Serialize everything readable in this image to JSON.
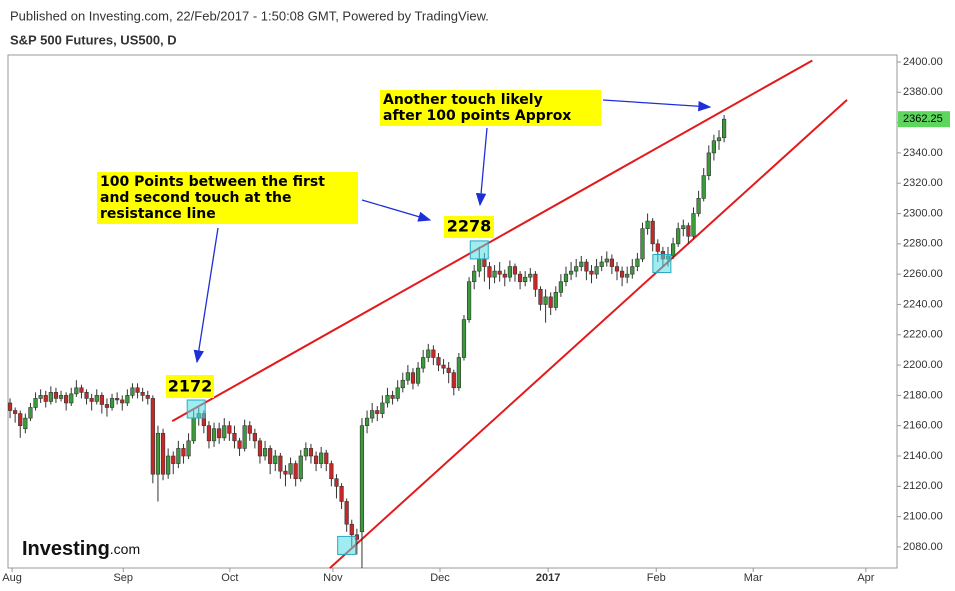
{
  "header": {
    "published": "Published on Investing.com, 22/Feb/2017 - 1:50:08 GMT, Powered by TradingView.",
    "symbol": "S&P 500 Futures, US500, D"
  },
  "logo": {
    "name": "Investing",
    "suffix": ".com"
  },
  "chart_data": {
    "type": "candlestick",
    "up_color": "#3c9a3c",
    "down_color": "#c62828",
    "xlim": [
      -0.4,
      173.9
    ],
    "ylim": [
      2066.1,
      2404.6
    ],
    "xticks": [
      {
        "value": 0.4,
        "label": "Aug"
      },
      {
        "value": 22.2,
        "label": "Sep"
      },
      {
        "value": 43.1,
        "label": "Oct"
      },
      {
        "value": 63.3,
        "label": "Nov"
      },
      {
        "value": 84.3,
        "label": "Dec"
      },
      {
        "value": 105.5,
        "label": "2017"
      },
      {
        "value": 126.7,
        "label": "Feb"
      },
      {
        "value": 145.7,
        "label": "Mar"
      },
      {
        "value": 167.8,
        "label": "Apr"
      }
    ],
    "yticks": [
      {
        "value": 2080,
        "label": "2080.00"
      },
      {
        "value": 2100,
        "label": "2100.00"
      },
      {
        "value": 2120,
        "label": "2120.00"
      },
      {
        "value": 2140,
        "label": "2140.00"
      },
      {
        "value": 2160,
        "label": "2160.00"
      },
      {
        "value": 2180,
        "label": "2180.00"
      },
      {
        "value": 2200,
        "label": "2200.00"
      },
      {
        "value": 2220,
        "label": "2220.00"
      },
      {
        "value": 2240,
        "label": "2240.00"
      },
      {
        "value": 2260,
        "label": "2260.00"
      },
      {
        "value": 2280,
        "label": "2280.00"
      },
      {
        "value": 2300,
        "label": "2300.00"
      },
      {
        "value": 2320,
        "label": "2320.00"
      },
      {
        "value": 2340,
        "label": "2340.00"
      },
      {
        "value": 2360,
        "label": "2360.00"
      },
      {
        "value": 2380,
        "label": "2380.00"
      },
      {
        "value": 2400,
        "label": "2400.00"
      }
    ],
    "last_price": 2362.25,
    "values": [
      [
        2175,
        2178,
        2165,
        2170
      ],
      [
        2170,
        2172,
        2162,
        2168
      ],
      [
        2168,
        2170,
        2152,
        2160
      ],
      [
        2158,
        2168,
        2155,
        2165
      ],
      [
        2165,
        2175,
        2163,
        2172
      ],
      [
        2172,
        2182,
        2170,
        2178
      ],
      [
        2178,
        2184,
        2175,
        2180
      ],
      [
        2180,
        2183,
        2172,
        2176
      ],
      [
        2176,
        2186,
        2174,
        2182
      ],
      [
        2182,
        2185,
        2175,
        2178
      ],
      [
        2178,
        2183,
        2176,
        2180
      ],
      [
        2180,
        2182,
        2170,
        2175
      ],
      [
        2175,
        2185,
        2173,
        2181
      ],
      [
        2181,
        2190,
        2179,
        2185
      ],
      [
        2185,
        2187,
        2178,
        2182
      ],
      [
        2182,
        2184,
        2174,
        2178
      ],
      [
        2178,
        2181,
        2170,
        2176
      ],
      [
        2176,
        2184,
        2174,
        2180
      ],
      [
        2180,
        2182,
        2168,
        2174
      ],
      [
        2174,
        2178,
        2166,
        2172
      ],
      [
        2172,
        2181,
        2170,
        2178
      ],
      [
        2178,
        2182,
        2174,
        2177
      ],
      [
        2177,
        2180,
        2170,
        2175
      ],
      [
        2175,
        2184,
        2173,
        2180
      ],
      [
        2180,
        2188,
        2178,
        2185
      ],
      [
        2185,
        2188,
        2178,
        2182
      ],
      [
        2182,
        2185,
        2176,
        2180
      ],
      [
        2180,
        2183,
        2174,
        2178
      ],
      [
        2178,
        2180,
        2122,
        2128
      ],
      [
        2128,
        2160,
        2110,
        2155
      ],
      [
        2155,
        2158,
        2124,
        2128
      ],
      [
        2128,
        2145,
        2125,
        2140
      ],
      [
        2140,
        2143,
        2128,
        2135
      ],
      [
        2135,
        2150,
        2132,
        2145
      ],
      [
        2145,
        2148,
        2135,
        2140
      ],
      [
        2140,
        2155,
        2138,
        2150
      ],
      [
        2150,
        2170,
        2148,
        2165
      ],
      [
        2165,
        2172,
        2160,
        2168
      ],
      [
        2168,
        2170,
        2155,
        2160
      ],
      [
        2160,
        2163,
        2145,
        2150
      ],
      [
        2150,
        2162,
        2146,
        2158
      ],
      [
        2158,
        2162,
        2148,
        2152
      ],
      [
        2152,
        2165,
        2150,
        2160
      ],
      [
        2160,
        2163,
        2150,
        2155
      ],
      [
        2155,
        2160,
        2145,
        2150
      ],
      [
        2150,
        2152,
        2140,
        2145
      ],
      [
        2145,
        2164,
        2143,
        2160
      ],
      [
        2160,
        2163,
        2150,
        2155
      ],
      [
        2155,
        2158,
        2145,
        2150
      ],
      [
        2150,
        2152,
        2135,
        2140
      ],
      [
        2140,
        2150,
        2137,
        2145
      ],
      [
        2145,
        2147,
        2128,
        2135
      ],
      [
        2135,
        2144,
        2130,
        2140
      ],
      [
        2140,
        2142,
        2125,
        2130
      ],
      [
        2130,
        2134,
        2120,
        2128
      ],
      [
        2128,
        2139,
        2125,
        2135
      ],
      [
        2135,
        2137,
        2120,
        2125
      ],
      [
        2125,
        2144,
        2123,
        2140
      ],
      [
        2140,
        2149,
        2137,
        2145
      ],
      [
        2145,
        2148,
        2135,
        2140
      ],
      [
        2140,
        2143,
        2130,
        2135
      ],
      [
        2135,
        2146,
        2132,
        2142
      ],
      [
        2142,
        2144,
        2130,
        2135
      ],
      [
        2135,
        2137,
        2120,
        2125
      ],
      [
        2125,
        2128,
        2112,
        2120
      ],
      [
        2120,
        2122,
        2105,
        2110
      ],
      [
        2110,
        2112,
        2090,
        2095
      ],
      [
        2095,
        2098,
        2080,
        2088
      ],
      [
        2088,
        2092,
        2075,
        2085
      ],
      [
        2090,
        2165,
        2066,
        2160
      ],
      [
        2160,
        2170,
        2155,
        2165
      ],
      [
        2165,
        2175,
        2162,
        2170
      ],
      [
        2170,
        2173,
        2163,
        2168
      ],
      [
        2168,
        2180,
        2165,
        2175
      ],
      [
        2175,
        2185,
        2172,
        2180
      ],
      [
        2180,
        2183,
        2174,
        2178
      ],
      [
        2178,
        2190,
        2176,
        2185
      ],
      [
        2185,
        2195,
        2182,
        2190
      ],
      [
        2190,
        2200,
        2187,
        2195
      ],
      [
        2195,
        2198,
        2184,
        2188
      ],
      [
        2188,
        2202,
        2186,
        2198
      ],
      [
        2198,
        2210,
        2195,
        2205
      ],
      [
        2205,
        2214,
        2202,
        2210
      ],
      [
        2210,
        2213,
        2200,
        2205
      ],
      [
        2205,
        2208,
        2196,
        2200
      ],
      [
        2200,
        2204,
        2194,
        2198
      ],
      [
        2198,
        2202,
        2188,
        2195
      ],
      [
        2195,
        2197,
        2180,
        2185
      ],
      [
        2185,
        2208,
        2183,
        2205
      ],
      [
        2205,
        2233,
        2203,
        2230
      ],
      [
        2230,
        2258,
        2228,
        2255
      ],
      [
        2255,
        2266,
        2250,
        2262
      ],
      [
        2262,
        2278,
        2258,
        2270
      ],
      [
        2270,
        2274,
        2255,
        2265
      ],
      [
        2265,
        2268,
        2250,
        2258
      ],
      [
        2258,
        2266,
        2254,
        2262
      ],
      [
        2262,
        2268,
        2255,
        2260
      ],
      [
        2260,
        2263,
        2252,
        2258
      ],
      [
        2258,
        2269,
        2255,
        2265
      ],
      [
        2265,
        2267,
        2255,
        2260
      ],
      [
        2260,
        2262,
        2250,
        2255
      ],
      [
        2255,
        2262,
        2252,
        2258
      ],
      [
        2258,
        2264,
        2255,
        2260
      ],
      [
        2260,
        2262,
        2245,
        2250
      ],
      [
        2250,
        2252,
        2236,
        2240
      ],
      [
        2240,
        2250,
        2228,
        2245
      ],
      [
        2245,
        2248,
        2233,
        2238
      ],
      [
        2238,
        2252,
        2236,
        2248
      ],
      [
        2248,
        2260,
        2245,
        2255
      ],
      [
        2255,
        2265,
        2252,
        2260
      ],
      [
        2260,
        2268,
        2256,
        2262
      ],
      [
        2262,
        2270,
        2258,
        2265
      ],
      [
        2265,
        2272,
        2262,
        2268
      ],
      [
        2268,
        2270,
        2256,
        2262
      ],
      [
        2262,
        2266,
        2254,
        2260
      ],
      [
        2260,
        2270,
        2257,
        2265
      ],
      [
        2265,
        2272,
        2262,
        2268
      ],
      [
        2268,
        2275,
        2265,
        2270
      ],
      [
        2270,
        2273,
        2260,
        2265
      ],
      [
        2265,
        2268,
        2256,
        2262
      ],
      [
        2262,
        2265,
        2252,
        2258
      ],
      [
        2258,
        2265,
        2254,
        2260
      ],
      [
        2260,
        2270,
        2257,
        2265
      ],
      [
        2265,
        2274,
        2262,
        2270
      ],
      [
        2270,
        2294,
        2268,
        2290
      ],
      [
        2290,
        2300,
        2286,
        2295
      ],
      [
        2295,
        2297,
        2275,
        2280
      ],
      [
        2280,
        2283,
        2268,
        2275
      ],
      [
        2275,
        2278,
        2265,
        2270
      ],
      [
        2270,
        2278,
        2265,
        2272
      ],
      [
        2272,
        2284,
        2270,
        2280
      ],
      [
        2280,
        2294,
        2278,
        2290
      ],
      [
        2290,
        2296,
        2285,
        2292
      ],
      [
        2292,
        2294,
        2280,
        2285
      ],
      [
        2285,
        2304,
        2283,
        2300
      ],
      [
        2300,
        2315,
        2298,
        2310
      ],
      [
        2310,
        2330,
        2308,
        2325
      ],
      [
        2325,
        2345,
        2322,
        2340
      ],
      [
        2340,
        2352,
        2335,
        2348
      ],
      [
        2348,
        2355,
        2342,
        2350
      ],
      [
        2350,
        2365,
        2347,
        2362.25
      ]
    ],
    "trendlines": [
      {
        "color": "#e31a1c",
        "x": [
          31.8,
          157.3
        ],
        "y": [
          2163,
          2401
        ]
      },
      {
        "color": "#e31a1c",
        "x": [
          62.7,
          164.1
        ],
        "y": [
          2066,
          2375
        ]
      }
    ],
    "touches": [
      {
        "x": 36.5,
        "y": 2171
      },
      {
        "x": 92,
        "y": 2276
      },
      {
        "x": 127.8,
        "y": 2267
      },
      {
        "x": 66,
        "y": 2081
      }
    ],
    "annotations": [
      {
        "lines": [
          "2172"
        ]
      },
      {
        "lines": [
          "2278"
        ]
      },
      {
        "lines": [
          "100 Points between the first",
          "and second touch at the",
          "resistance line"
        ]
      },
      {
        "lines": [
          "Another touch likely",
          "after 100 points Approx"
        ]
      }
    ]
  }
}
